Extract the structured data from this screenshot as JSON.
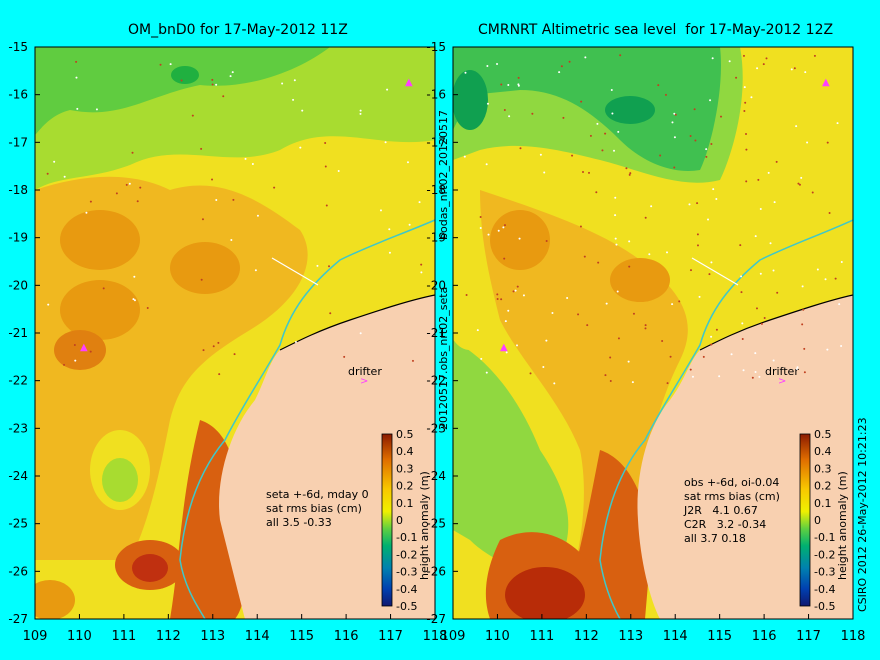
{
  "panels": [
    {
      "title": "OM_bnD0 for 17-May-2012 11Z",
      "y_ticks": [
        "-15",
        "-16",
        "-17",
        "-18",
        "-19",
        "-20",
        "-21",
        "-22",
        "-23",
        "-24",
        "-25",
        "-26",
        "-27"
      ],
      "x_ticks": [
        "109",
        "110",
        "111",
        "112",
        "113",
        "114",
        "115",
        "116",
        "117",
        "118"
      ],
      "drifter_label": "drifter",
      "stats": [
        "seta +-6d, mday 0",
        "sat rms bias (cm)",
        "all 3.5 -0.33"
      ],
      "colorbar_label": "height anomaly (m)"
    },
    {
      "title": "CMRNRT Altimetric sea level  for 17-May-2012 12Z",
      "y_ticks": [
        "-15",
        "-16",
        "-17",
        "-18",
        "-19",
        "-20",
        "-21",
        "-22",
        "-23",
        "-24",
        "-25",
        "-26",
        "-27"
      ],
      "x_ticks": [
        "109",
        "110",
        "111",
        "112",
        "113",
        "114",
        "115",
        "116",
        "117",
        "118"
      ],
      "drifter_label": "drifter",
      "stats": [
        "obs +-6d, oi-0.04",
        "sat rms bias (cm)",
        "J2R   4.1 0.67",
        "C2R   3.2 -0.34",
        "all 3.7 0.18"
      ],
      "colorbar_label": "height anomaly (m)"
    }
  ],
  "colorbar_ticks": [
    "0.5",
    "0.4",
    "0.3",
    "0.2",
    "0.1",
    "0",
    "-0.1",
    "-0.2",
    "-0.3",
    "-0.4",
    "-0.5"
  ],
  "colorbar_colors": [
    "#8b1a00",
    "#c83c00",
    "#e06e00",
    "#f09a00",
    "#f8c800",
    "#f0f000",
    "#90e040",
    "#20c040",
    "#00a0a0",
    "#0060c0",
    "#102080"
  ],
  "side_label_top": "bodas_nrt02_20120517",
  "side_label_bottom": "20120517.obs_nrt02_seta",
  "copyright": "CSIRO 2012   26-May-2012 10:21:23",
  "colors": {
    "background": "#00ffff",
    "land": "#f8d0b0",
    "coast": "#60d8d8"
  }
}
